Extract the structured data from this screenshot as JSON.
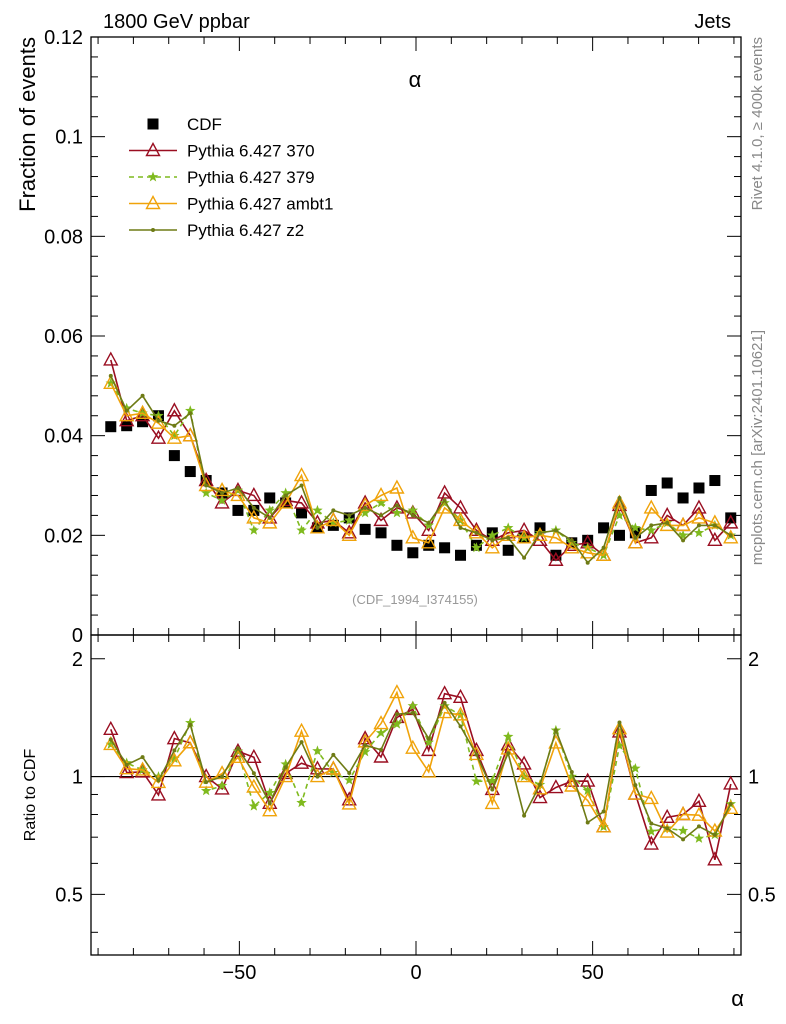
{
  "header": {
    "left": "1800 GeV ppbar",
    "right": "Jets"
  },
  "side": {
    "rivet": "Rivet 4.1.0, ≥ 400k events",
    "mcplots": "mcplots.cern.ch [arXiv:2401.10621]"
  },
  "chart_data": {
    "type": "scatter",
    "title": "α",
    "xlabel": "α",
    "ylabel": "Fraction of events",
    "ratio_ylabel": "Ratio to CDF",
    "watermark": "(CDF_1994_I374155)",
    "xlim": [
      -92,
      92
    ],
    "ylim": [
      0,
      0.12
    ],
    "ratio_ylim": [
      0.35,
      2.3
    ],
    "yticks": [
      "0",
      "0.02",
      "0.04",
      "0.06",
      "0.08",
      "0.1",
      "0.12"
    ],
    "xticks": [
      "−50",
      "0",
      "50"
    ],
    "ratio_yticks": [
      "0.5",
      "1",
      "2"
    ],
    "x": [
      -86.4,
      -81.9,
      -77.4,
      -72.9,
      -68.4,
      -63.9,
      -59.4,
      -54.9,
      -50.4,
      -45.9,
      -41.4,
      -36.9,
      -32.4,
      -27.9,
      -23.4,
      -18.9,
      -14.4,
      -9.9,
      -5.4,
      -0.9,
      3.6,
      8.1,
      12.6,
      17.1,
      21.6,
      26.1,
      30.6,
      35.1,
      39.6,
      44.1,
      48.6,
      53.1,
      57.6,
      62.1,
      66.6,
      71.1,
      75.6,
      80.1,
      84.6,
      89.1
    ],
    "series": [
      {
        "name": "CDF",
        "color": "#000000",
        "marker": "square",
        "values": [
          0.0418,
          0.042,
          0.0428,
          0.044,
          0.036,
          0.0328,
          0.031,
          0.0285,
          0.025,
          0.025,
          0.0275,
          0.0265,
          0.0245,
          0.0215,
          0.022,
          0.0235,
          0.0212,
          0.0205,
          0.018,
          0.0165,
          0.018,
          0.0175,
          0.016,
          0.018,
          0.0205,
          0.017,
          0.0195,
          0.0215,
          0.016,
          0.0185,
          0.019,
          0.0215,
          0.02,
          0.0205,
          0.029,
          0.0305,
          0.0275,
          0.0295,
          0.031,
          0.0235
        ]
      },
      {
        "name": "Pythia 6.427 370",
        "color": "#9a0e21",
        "marker": "triangle-open",
        "dash": "",
        "values": [
          0.0552,
          0.043,
          0.044,
          0.0395,
          0.045,
          0.04,
          0.031,
          0.0265,
          0.029,
          0.028,
          0.0235,
          0.027,
          0.0265,
          0.0225,
          0.023,
          0.0205,
          0.0265,
          0.023,
          0.0255,
          0.0245,
          0.021,
          0.0285,
          0.0255,
          0.021,
          0.019,
          0.0205,
          0.021,
          0.019,
          0.015,
          0.018,
          0.0185,
          0.016,
          0.026,
          0.0185,
          0.0195,
          0.024,
          0.022,
          0.0255,
          0.019,
          0.0225
        ]
      },
      {
        "name": "Pythia 6.427 379",
        "color": "#7fba1e",
        "marker": "star",
        "dash": "5,4",
        "values": [
          0.0505,
          0.0455,
          0.0445,
          0.044,
          0.04,
          0.045,
          0.0285,
          0.027,
          0.029,
          0.021,
          0.025,
          0.0285,
          0.021,
          0.025,
          0.0225,
          0.023,
          0.0245,
          0.0265,
          0.0245,
          0.025,
          0.022,
          0.0265,
          0.023,
          0.0175,
          0.02,
          0.0215,
          0.0195,
          0.0205,
          0.021,
          0.0185,
          0.0175,
          0.016,
          0.024,
          0.0215,
          0.021,
          0.0225,
          0.02,
          0.0205,
          0.022,
          0.02
        ]
      },
      {
        "name": "Pythia 6.427 ambt1",
        "color": "#f0a30a",
        "marker": "triangle-open",
        "dash": "",
        "values": [
          0.0505,
          0.044,
          0.0445,
          0.0425,
          0.0395,
          0.04,
          0.03,
          0.029,
          0.028,
          0.0235,
          0.0225,
          0.0265,
          0.032,
          0.0215,
          0.023,
          0.02,
          0.026,
          0.028,
          0.0295,
          0.0195,
          0.0185,
          0.0255,
          0.023,
          0.0205,
          0.0175,
          0.02,
          0.0195,
          0.02,
          0.0195,
          0.0175,
          0.0165,
          0.016,
          0.0265,
          0.0185,
          0.0255,
          0.022,
          0.022,
          0.0235,
          0.0225,
          0.0195
        ]
      },
      {
        "name": "Pythia 6.427 z2",
        "color": "#6e7b15",
        "marker": "dot",
        "dash": "",
        "values": [
          0.052,
          0.045,
          0.048,
          0.043,
          0.042,
          0.0445,
          0.03,
          0.0285,
          0.0295,
          0.0255,
          0.0235,
          0.028,
          0.03,
          0.0215,
          0.025,
          0.024,
          0.0255,
          0.024,
          0.026,
          0.024,
          0.0225,
          0.027,
          0.0215,
          0.0205,
          0.019,
          0.0195,
          0.0155,
          0.0205,
          0.021,
          0.019,
          0.0145,
          0.0175,
          0.0275,
          0.0195,
          0.022,
          0.0225,
          0.019,
          0.022,
          0.022,
          0.02
        ]
      }
    ]
  }
}
